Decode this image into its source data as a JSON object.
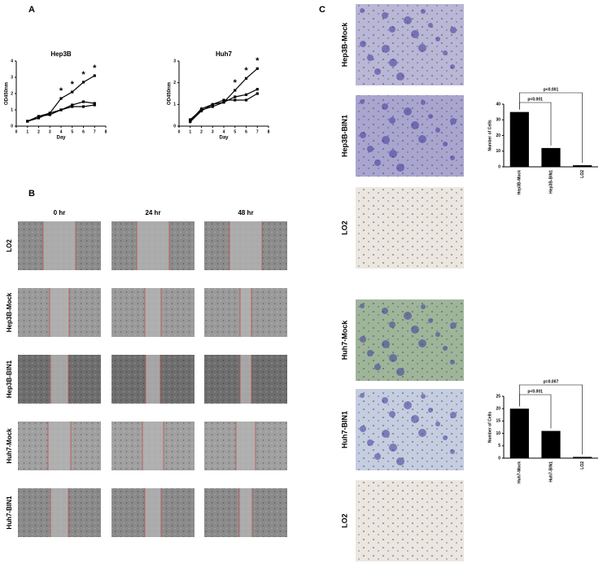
{
  "panels": {
    "a": "A",
    "b": "B",
    "c": "C"
  },
  "scratch": {
    "columns": [
      "0 hr",
      "24 hr",
      "48 hr"
    ],
    "rows": [
      "LO2",
      "Hep3B-Mock",
      "Hep3B-BIN1",
      "Huh7-Mock",
      "Huh7-BIN1"
    ]
  },
  "transwell": {
    "rows": [
      "Hep3B-Mock",
      "Hep3B-BIN1",
      "LO2",
      "Huh7-Mock",
      "Huh7-BIN1",
      "LO2"
    ]
  },
  "chart_data": [
    {
      "type": "line",
      "title": "Hep3B",
      "x_label": "Day",
      "y_label": "OD450nm",
      "x": [
        1,
        2,
        3,
        4,
        5,
        6,
        7
      ],
      "series": [
        {
          "color": "#000000",
          "values": [
            0.3,
            0.6,
            0.8,
            1.7,
            2.1,
            2.7,
            3.1
          ]
        },
        {
          "color": "#000000",
          "values": [
            0.3,
            0.6,
            0.7,
            1.0,
            1.3,
            1.5,
            1.4
          ]
        },
        {
          "color": "#000000",
          "values": [
            0.3,
            0.5,
            0.8,
            1.0,
            1.2,
            1.2,
            1.3
          ]
        }
      ],
      "annotations": [
        "*",
        "*",
        "*",
        "*"
      ],
      "xlim": [
        0,
        8
      ],
      "xticks": [
        0,
        1,
        2,
        3,
        4,
        5,
        6,
        7,
        8
      ],
      "ylim": [
        0,
        4
      ],
      "yticks": [
        0,
        1,
        2,
        3,
        4
      ]
    },
    {
      "type": "line",
      "title": "Huh7",
      "x_label": "Day",
      "y_label": "OD450nm",
      "x": [
        1,
        2,
        3,
        4,
        5,
        6,
        7
      ],
      "series": [
        {
          "color": "#000000",
          "values": [
            0.3,
            0.75,
            0.9,
            1.1,
            1.65,
            2.2,
            2.65
          ]
        },
        {
          "color": "#000000",
          "values": [
            0.25,
            0.8,
            1.0,
            1.1,
            1.35,
            1.45,
            1.7
          ]
        },
        {
          "color": "#000000",
          "values": [
            0.2,
            0.7,
            1.0,
            1.2,
            1.2,
            1.2,
            1.5
          ]
        }
      ],
      "annotations": [
        "*",
        "*",
        "*"
      ],
      "xlim": [
        0,
        8
      ],
      "xticks": [
        0,
        1,
        2,
        3,
        4,
        5,
        6,
        7,
        8
      ],
      "ylim": [
        0,
        3
      ],
      "yticks": [
        0,
        1,
        2,
        3
      ]
    },
    {
      "type": "bar",
      "y_label": "Number of Cells",
      "color": "#000000",
      "categories": [
        "Hep3B-Mock",
        "Hep3B-BIN1",
        "LO2"
      ],
      "values": [
        35,
        12,
        1
      ],
      "annotations": [
        "p<0.001",
        "p<0.001"
      ],
      "ylim": [
        0,
        40
      ],
      "yticks": [
        0,
        10,
        20,
        30,
        40
      ]
    },
    {
      "type": "bar",
      "y_label": "Number of Cells",
      "color": "#000000",
      "categories": [
        "Huh7-Mock",
        "Huh7-BIN1",
        "LO2"
      ],
      "values": [
        20,
        11,
        0.5
      ],
      "annotations": [
        "p=0.007",
        "p<0.001"
      ],
      "ylim": [
        0,
        25
      ],
      "yticks": [
        0,
        5,
        10,
        15,
        20,
        25
      ]
    }
  ]
}
